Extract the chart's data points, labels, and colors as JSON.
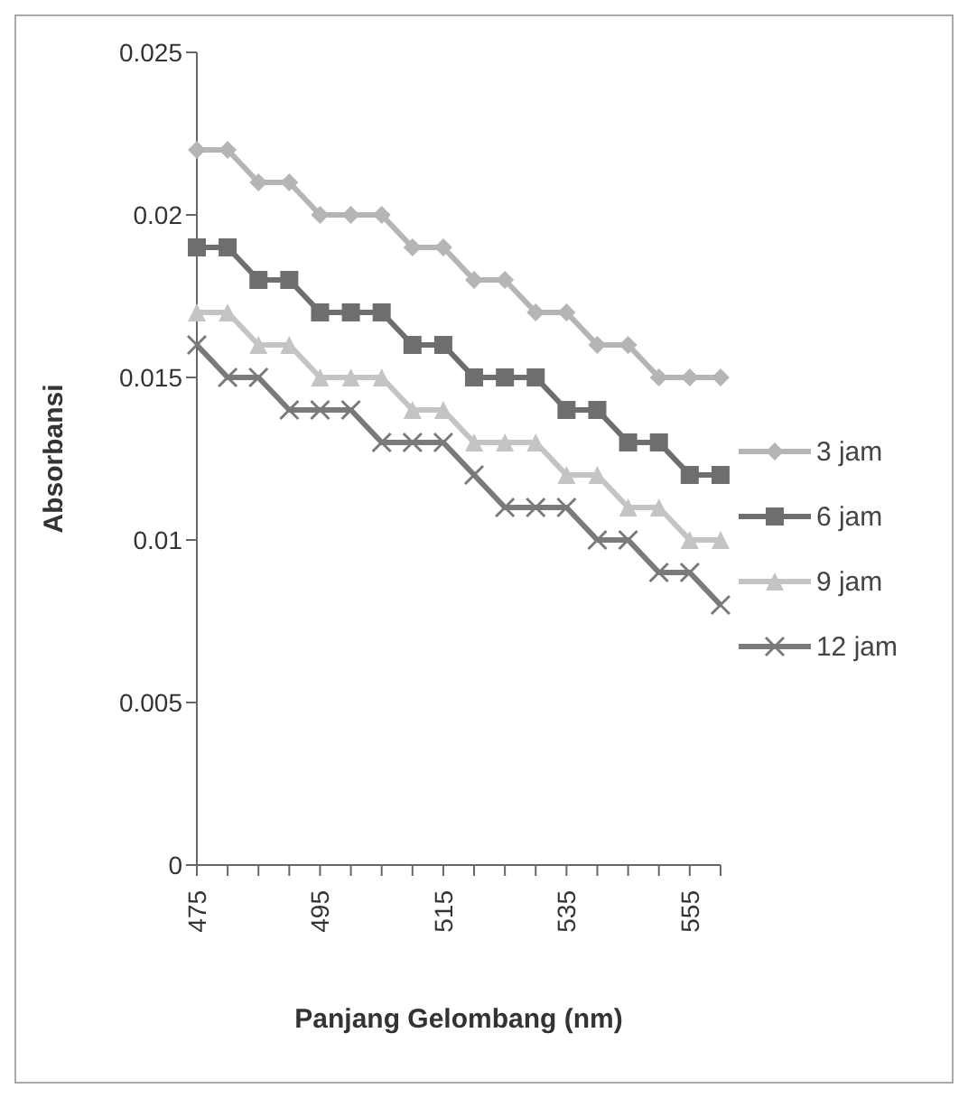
{
  "chart_data": {
    "type": "line",
    "xlabel": "Panjang Gelombang (nm)",
    "ylabel": "Absorbansi",
    "categories": [
      "475",
      null,
      null,
      null,
      "495",
      null,
      null,
      null,
      "515",
      null,
      null,
      null,
      "535",
      null,
      null,
      null,
      "555",
      null
    ],
    "series": [
      {
        "name": "3 jam",
        "color": "#b5b5b5",
        "marker": "diamond",
        "values": [
          0.022,
          0.022,
          0.021,
          0.021,
          0.02,
          0.02,
          0.02,
          0.019,
          0.019,
          0.018,
          0.018,
          0.017,
          0.017,
          0.016,
          0.016,
          0.015,
          0.015,
          0.015
        ]
      },
      {
        "name": "6 jam",
        "color": "#6e6e6e",
        "marker": "square",
        "values": [
          0.019,
          0.019,
          0.018,
          0.018,
          0.017,
          0.017,
          0.017,
          0.016,
          0.016,
          0.015,
          0.015,
          0.015,
          0.014,
          0.014,
          0.013,
          0.013,
          0.012,
          0.012
        ]
      },
      {
        "name": "9 jam",
        "color": "#c4c4c4",
        "marker": "triangle",
        "values": [
          0.017,
          0.017,
          0.016,
          0.016,
          0.015,
          0.015,
          0.015,
          0.014,
          0.014,
          0.013,
          0.013,
          0.013,
          0.012,
          0.012,
          0.011,
          0.011,
          0.01,
          0.01
        ]
      },
      {
        "name": "12 jam",
        "color": "#7a7a7a",
        "marker": "cross",
        "values": [
          0.016,
          0.015,
          0.015,
          0.014,
          0.014,
          0.014,
          0.013,
          0.013,
          0.013,
          0.012,
          0.011,
          0.011,
          0.011,
          0.01,
          0.01,
          0.009,
          0.009,
          0.008
        ]
      }
    ],
    "ylim": [
      0,
      0.025
    ],
    "yticks": [
      0,
      0.005,
      0.01,
      0.015,
      0.02,
      0.025
    ],
    "grid": false,
    "legend": "right"
  }
}
